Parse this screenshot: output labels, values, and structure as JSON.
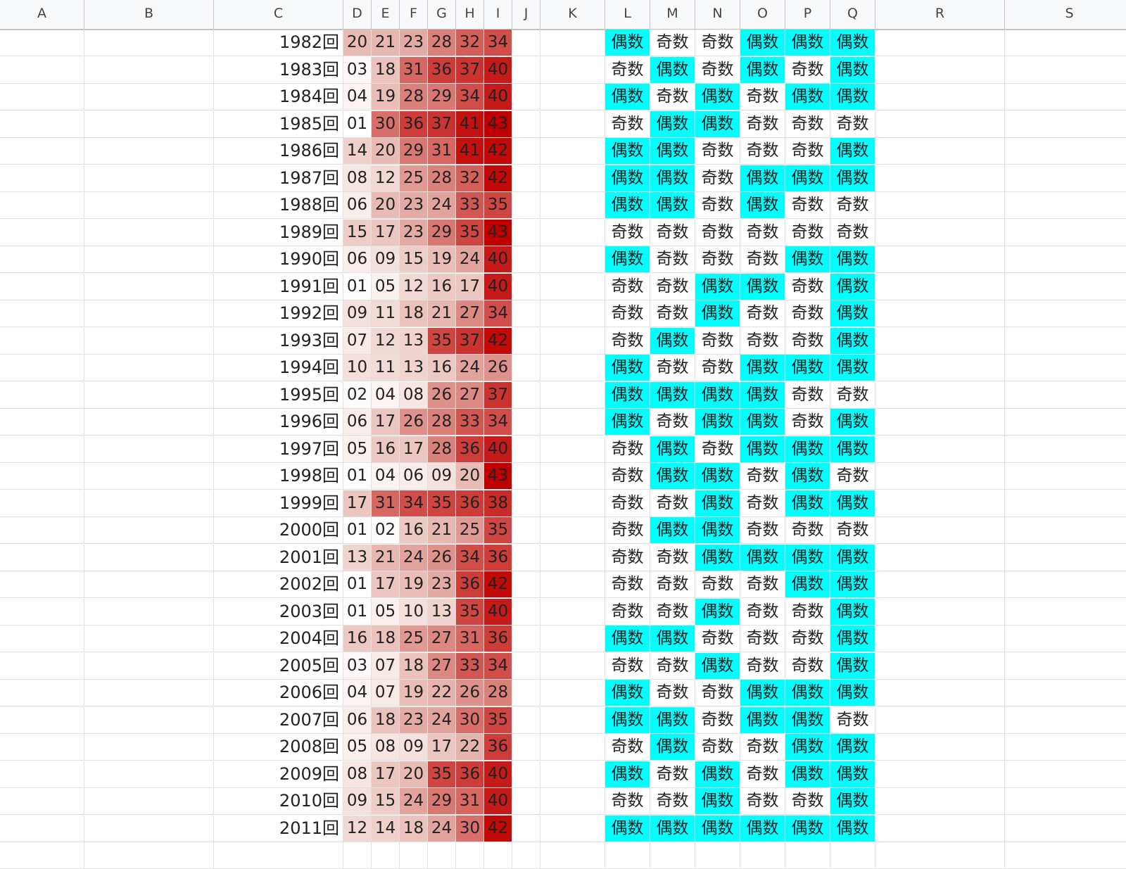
{
  "columns": [
    "A",
    "B",
    "C",
    "D",
    "E",
    "F",
    "G",
    "H",
    "I",
    "J",
    "K",
    "L",
    "M",
    "N",
    "O",
    "P",
    "Q",
    "R",
    "S"
  ],
  "parity_labels": {
    "even": "偶数",
    "odd": "奇数"
  },
  "colors": {
    "even_fill": "#00ffff",
    "odd_fill": "#ffffff",
    "scale_low": "#ffffff",
    "scale_mid": "#e6b4ac",
    "scale_high": "#c00000"
  },
  "rows": [
    {
      "round": "1982回",
      "nums": [
        "20",
        "21",
        "23",
        "28",
        "32",
        "34"
      ],
      "parity": [
        "偶数",
        "奇数",
        "奇数",
        "偶数",
        "偶数",
        "偶数"
      ]
    },
    {
      "round": "1983回",
      "nums": [
        "03",
        "18",
        "31",
        "36",
        "37",
        "40"
      ],
      "parity": [
        "奇数",
        "偶数",
        "奇数",
        "偶数",
        "奇数",
        "偶数"
      ]
    },
    {
      "round": "1984回",
      "nums": [
        "04",
        "19",
        "28",
        "29",
        "34",
        "40"
      ],
      "parity": [
        "偶数",
        "奇数",
        "偶数",
        "奇数",
        "偶数",
        "偶数"
      ]
    },
    {
      "round": "1985回",
      "nums": [
        "01",
        "30",
        "36",
        "37",
        "41",
        "43"
      ],
      "parity": [
        "奇数",
        "偶数",
        "偶数",
        "奇数",
        "奇数",
        "奇数"
      ]
    },
    {
      "round": "1986回",
      "nums": [
        "14",
        "20",
        "29",
        "31",
        "41",
        "42"
      ],
      "parity": [
        "偶数",
        "偶数",
        "奇数",
        "奇数",
        "奇数",
        "偶数"
      ]
    },
    {
      "round": "1987回",
      "nums": [
        "08",
        "12",
        "25",
        "28",
        "32",
        "42"
      ],
      "parity": [
        "偶数",
        "偶数",
        "奇数",
        "偶数",
        "偶数",
        "偶数"
      ]
    },
    {
      "round": "1988回",
      "nums": [
        "06",
        "20",
        "23",
        "24",
        "33",
        "35"
      ],
      "parity": [
        "偶数",
        "偶数",
        "奇数",
        "偶数",
        "奇数",
        "奇数"
      ]
    },
    {
      "round": "1989回",
      "nums": [
        "15",
        "17",
        "23",
        "29",
        "35",
        "43"
      ],
      "parity": [
        "奇数",
        "奇数",
        "奇数",
        "奇数",
        "奇数",
        "奇数"
      ]
    },
    {
      "round": "1990回",
      "nums": [
        "06",
        "09",
        "15",
        "19",
        "24",
        "40"
      ],
      "parity": [
        "偶数",
        "奇数",
        "奇数",
        "奇数",
        "偶数",
        "偶数"
      ]
    },
    {
      "round": "1991回",
      "nums": [
        "01",
        "05",
        "12",
        "16",
        "17",
        "40"
      ],
      "parity": [
        "奇数",
        "奇数",
        "偶数",
        "偶数",
        "奇数",
        "偶数"
      ]
    },
    {
      "round": "1992回",
      "nums": [
        "09",
        "11",
        "18",
        "21",
        "27",
        "34"
      ],
      "parity": [
        "奇数",
        "奇数",
        "偶数",
        "奇数",
        "奇数",
        "偶数"
      ]
    },
    {
      "round": "1993回",
      "nums": [
        "07",
        "12",
        "13",
        "35",
        "37",
        "42"
      ],
      "parity": [
        "奇数",
        "偶数",
        "奇数",
        "奇数",
        "奇数",
        "偶数"
      ]
    },
    {
      "round": "1994回",
      "nums": [
        "10",
        "11",
        "13",
        "16",
        "24",
        "26"
      ],
      "parity": [
        "偶数",
        "奇数",
        "奇数",
        "偶数",
        "偶数",
        "偶数"
      ]
    },
    {
      "round": "1995回",
      "nums": [
        "02",
        "04",
        "08",
        "26",
        "27",
        "37"
      ],
      "parity": [
        "偶数",
        "偶数",
        "偶数",
        "偶数",
        "奇数",
        "奇数"
      ]
    },
    {
      "round": "1996回",
      "nums": [
        "06",
        "17",
        "26",
        "28",
        "33",
        "34"
      ],
      "parity": [
        "偶数",
        "奇数",
        "偶数",
        "偶数",
        "奇数",
        "偶数"
      ]
    },
    {
      "round": "1997回",
      "nums": [
        "05",
        "16",
        "17",
        "28",
        "36",
        "40"
      ],
      "parity": [
        "奇数",
        "偶数",
        "奇数",
        "偶数",
        "偶数",
        "偶数"
      ]
    },
    {
      "round": "1998回",
      "nums": [
        "01",
        "04",
        "06",
        "09",
        "20",
        "43"
      ],
      "parity": [
        "奇数",
        "偶数",
        "偶数",
        "奇数",
        "偶数",
        "奇数"
      ]
    },
    {
      "round": "1999回",
      "nums": [
        "17",
        "31",
        "34",
        "35",
        "36",
        "38"
      ],
      "parity": [
        "奇数",
        "奇数",
        "偶数",
        "奇数",
        "偶数",
        "偶数"
      ]
    },
    {
      "round": "2000回",
      "nums": [
        "01",
        "02",
        "16",
        "21",
        "25",
        "35"
      ],
      "parity": [
        "奇数",
        "偶数",
        "偶数",
        "奇数",
        "奇数",
        "奇数"
      ]
    },
    {
      "round": "2001回",
      "nums": [
        "13",
        "21",
        "24",
        "26",
        "34",
        "36"
      ],
      "parity": [
        "奇数",
        "奇数",
        "偶数",
        "偶数",
        "偶数",
        "偶数"
      ]
    },
    {
      "round": "2002回",
      "nums": [
        "01",
        "17",
        "19",
        "23",
        "36",
        "42"
      ],
      "parity": [
        "奇数",
        "奇数",
        "奇数",
        "奇数",
        "偶数",
        "偶数"
      ]
    },
    {
      "round": "2003回",
      "nums": [
        "01",
        "05",
        "10",
        "13",
        "35",
        "40"
      ],
      "parity": [
        "奇数",
        "奇数",
        "偶数",
        "奇数",
        "奇数",
        "偶数"
      ]
    },
    {
      "round": "2004回",
      "nums": [
        "16",
        "18",
        "25",
        "27",
        "31",
        "36"
      ],
      "parity": [
        "偶数",
        "偶数",
        "奇数",
        "奇数",
        "奇数",
        "偶数"
      ]
    },
    {
      "round": "2005回",
      "nums": [
        "03",
        "07",
        "18",
        "27",
        "33",
        "34"
      ],
      "parity": [
        "奇数",
        "奇数",
        "偶数",
        "奇数",
        "奇数",
        "偶数"
      ]
    },
    {
      "round": "2006回",
      "nums": [
        "04",
        "07",
        "19",
        "22",
        "26",
        "28"
      ],
      "parity": [
        "偶数",
        "奇数",
        "奇数",
        "偶数",
        "偶数",
        "偶数"
      ]
    },
    {
      "round": "2007回",
      "nums": [
        "06",
        "18",
        "23",
        "24",
        "30",
        "35"
      ],
      "parity": [
        "偶数",
        "偶数",
        "奇数",
        "偶数",
        "偶数",
        "奇数"
      ]
    },
    {
      "round": "2008回",
      "nums": [
        "05",
        "08",
        "09",
        "17",
        "22",
        "36"
      ],
      "parity": [
        "奇数",
        "偶数",
        "奇数",
        "奇数",
        "偶数",
        "偶数"
      ]
    },
    {
      "round": "2009回",
      "nums": [
        "08",
        "17",
        "20",
        "35",
        "36",
        "40"
      ],
      "parity": [
        "偶数",
        "奇数",
        "偶数",
        "奇数",
        "偶数",
        "偶数"
      ]
    },
    {
      "round": "2010回",
      "nums": [
        "09",
        "15",
        "24",
        "29",
        "31",
        "40"
      ],
      "parity": [
        "奇数",
        "奇数",
        "偶数",
        "奇数",
        "奇数",
        "偶数"
      ]
    },
    {
      "round": "2011回",
      "nums": [
        "12",
        "14",
        "18",
        "24",
        "30",
        "42"
      ],
      "parity": [
        "偶数",
        "偶数",
        "偶数",
        "偶数",
        "偶数",
        "偶数"
      ]
    }
  ]
}
